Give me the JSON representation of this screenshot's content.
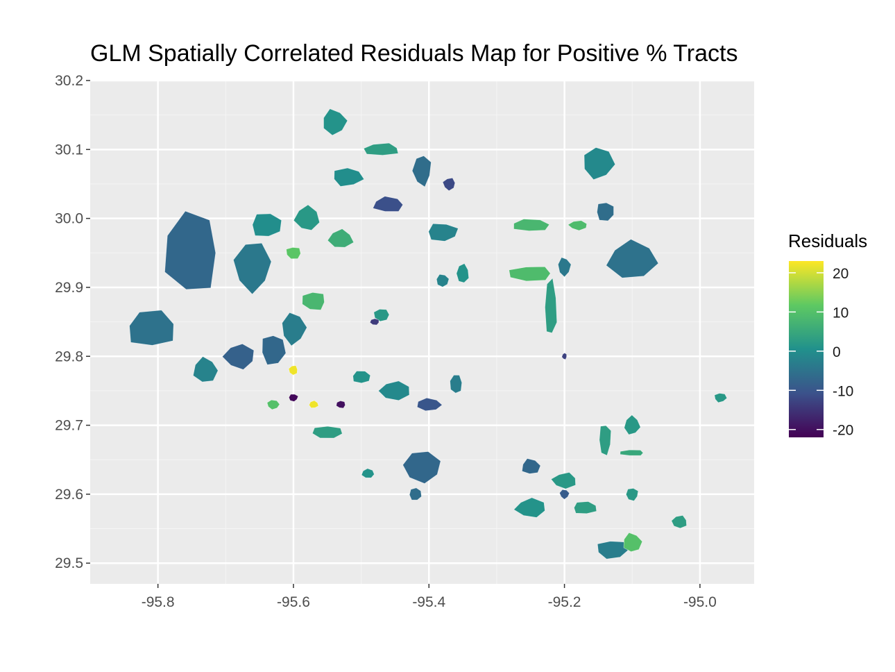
{
  "title": "GLM Spatially Correlated Residuals Map for Positive % Tracts",
  "chart_data": {
    "type": "choropleth",
    "title": "GLM Spatially Correlated Residuals Map for Positive % Tracts",
    "xlabel": "",
    "ylabel": "",
    "xlim": [
      -95.9,
      -94.92
    ],
    "ylim": [
      29.47,
      30.2
    ],
    "x_ticks": [
      "-95.8",
      "-95.6",
      "-95.4",
      "-95.2",
      "-95.0"
    ],
    "x_tick_values": [
      -95.8,
      -95.6,
      -95.4,
      -95.2,
      -95.0
    ],
    "y_ticks": [
      "29.5",
      "29.6",
      "29.7",
      "29.8",
      "29.9",
      "30.0",
      "30.1",
      "30.2"
    ],
    "y_tick_values": [
      29.5,
      29.6,
      29.7,
      29.8,
      29.9,
      30.0,
      30.1,
      30.2
    ],
    "grid": true,
    "legend": {
      "title": "Residuals",
      "position": "right",
      "ticks": [
        "20",
        "10",
        "0",
        "-10",
        "-20"
      ],
      "tick_values": [
        20,
        10,
        0,
        -10,
        -20
      ],
      "range": [
        -22,
        23
      ],
      "palette": [
        "#440154",
        "#3b528b",
        "#21918c",
        "#5ec962",
        "#fde725"
      ]
    },
    "regions": [
      {
        "lon": -95.75,
        "lat": 29.95,
        "w": 0.09,
        "h": 0.13,
        "value": -7
      },
      {
        "lon": -95.66,
        "lat": 29.93,
        "w": 0.06,
        "h": 0.08,
        "value": -4
      },
      {
        "lon": -95.64,
        "lat": 29.99,
        "w": 0.05,
        "h": 0.04,
        "value": 0
      },
      {
        "lon": -95.58,
        "lat": 30.0,
        "w": 0.04,
        "h": 0.04,
        "value": 2
      },
      {
        "lon": -95.6,
        "lat": 29.95,
        "w": 0.025,
        "h": 0.02,
        "value": 11
      },
      {
        "lon": -95.54,
        "lat": 30.14,
        "w": 0.04,
        "h": 0.04,
        "value": 1
      },
      {
        "lon": -95.47,
        "lat": 30.1,
        "w": 0.06,
        "h": 0.02,
        "value": 3
      },
      {
        "lon": -95.41,
        "lat": 30.07,
        "w": 0.03,
        "h": 0.05,
        "value": -6
      },
      {
        "lon": -95.52,
        "lat": 30.06,
        "w": 0.05,
        "h": 0.03,
        "value": 0
      },
      {
        "lon": -95.46,
        "lat": 30.02,
        "w": 0.05,
        "h": 0.025,
        "value": -11
      },
      {
        "lon": -95.37,
        "lat": 30.05,
        "w": 0.02,
        "h": 0.02,
        "value": -12
      },
      {
        "lon": -95.38,
        "lat": 29.98,
        "w": 0.05,
        "h": 0.03,
        "value": -2
      },
      {
        "lon": -95.53,
        "lat": 29.97,
        "w": 0.04,
        "h": 0.03,
        "value": 6
      },
      {
        "lon": -95.57,
        "lat": 29.88,
        "w": 0.04,
        "h": 0.03,
        "value": 8
      },
      {
        "lon": -95.6,
        "lat": 29.84,
        "w": 0.04,
        "h": 0.05,
        "value": -3
      },
      {
        "lon": -95.81,
        "lat": 29.84,
        "w": 0.08,
        "h": 0.06,
        "value": -5
      },
      {
        "lon": -95.68,
        "lat": 29.8,
        "w": 0.05,
        "h": 0.04,
        "value": -8
      },
      {
        "lon": -95.63,
        "lat": 29.81,
        "w": 0.04,
        "h": 0.05,
        "value": -7
      },
      {
        "lon": -95.73,
        "lat": 29.78,
        "w": 0.04,
        "h": 0.04,
        "value": -2
      },
      {
        "lon": -95.6,
        "lat": 29.78,
        "w": 0.015,
        "h": 0.015,
        "value": 22
      },
      {
        "lon": -95.6,
        "lat": 29.74,
        "w": 0.015,
        "h": 0.012,
        "value": -21
      },
      {
        "lon": -95.57,
        "lat": 29.73,
        "w": 0.015,
        "h": 0.012,
        "value": 22
      },
      {
        "lon": -95.53,
        "lat": 29.73,
        "w": 0.015,
        "h": 0.012,
        "value": -20
      },
      {
        "lon": -95.63,
        "lat": 29.73,
        "w": 0.02,
        "h": 0.015,
        "value": 10
      },
      {
        "lon": -95.5,
        "lat": 29.77,
        "w": 0.03,
        "h": 0.02,
        "value": 1
      },
      {
        "lon": -95.45,
        "lat": 29.75,
        "w": 0.05,
        "h": 0.03,
        "value": -1
      },
      {
        "lon": -95.55,
        "lat": 29.69,
        "w": 0.05,
        "h": 0.02,
        "value": 3
      },
      {
        "lon": -95.4,
        "lat": 29.73,
        "w": 0.04,
        "h": 0.02,
        "value": -10
      },
      {
        "lon": -95.36,
        "lat": 29.76,
        "w": 0.02,
        "h": 0.03,
        "value": -3
      },
      {
        "lon": -95.41,
        "lat": 29.64,
        "w": 0.06,
        "h": 0.05,
        "value": -7
      },
      {
        "lon": -95.42,
        "lat": 29.6,
        "w": 0.02,
        "h": 0.02,
        "value": -6
      },
      {
        "lon": -95.49,
        "lat": 29.63,
        "w": 0.02,
        "h": 0.015,
        "value": 1
      },
      {
        "lon": -95.47,
        "lat": 29.86,
        "w": 0.025,
        "h": 0.02,
        "value": 2
      },
      {
        "lon": -95.38,
        "lat": 29.91,
        "w": 0.02,
        "h": 0.02,
        "value": -2
      },
      {
        "lon": -95.35,
        "lat": 29.92,
        "w": 0.02,
        "h": 0.03,
        "value": 1
      },
      {
        "lon": -95.48,
        "lat": 29.85,
        "w": 0.015,
        "h": 0.01,
        "value": -14
      },
      {
        "lon": -95.15,
        "lat": 30.08,
        "w": 0.05,
        "h": 0.05,
        "value": -1
      },
      {
        "lon": -95.25,
        "lat": 29.99,
        "w": 0.06,
        "h": 0.02,
        "value": 8
      },
      {
        "lon": -95.18,
        "lat": 29.99,
        "w": 0.03,
        "h": 0.015,
        "value": 9
      },
      {
        "lon": -95.14,
        "lat": 30.01,
        "w": 0.03,
        "h": 0.03,
        "value": -6
      },
      {
        "lon": -95.1,
        "lat": 29.94,
        "w": 0.08,
        "h": 0.06,
        "value": -5
      },
      {
        "lon": -95.25,
        "lat": 29.92,
        "w": 0.07,
        "h": 0.025,
        "value": 9
      },
      {
        "lon": -95.2,
        "lat": 29.93,
        "w": 0.02,
        "h": 0.03,
        "value": -4
      },
      {
        "lon": -95.22,
        "lat": 29.87,
        "w": 0.02,
        "h": 0.09,
        "value": 3
      },
      {
        "lon": -95.2,
        "lat": 29.8,
        "w": 0.008,
        "h": 0.01,
        "value": -13
      },
      {
        "lon": -94.97,
        "lat": 29.74,
        "w": 0.02,
        "h": 0.015,
        "value": 2
      },
      {
        "lon": -95.25,
        "lat": 29.64,
        "w": 0.03,
        "h": 0.025,
        "value": -7
      },
      {
        "lon": -95.2,
        "lat": 29.62,
        "w": 0.04,
        "h": 0.025,
        "value": 2
      },
      {
        "lon": -95.14,
        "lat": 29.68,
        "w": 0.02,
        "h": 0.05,
        "value": 3
      },
      {
        "lon": -95.1,
        "lat": 29.7,
        "w": 0.025,
        "h": 0.03,
        "value": 2
      },
      {
        "lon": -95.1,
        "lat": 29.66,
        "w": 0.04,
        "h": 0.01,
        "value": 5
      },
      {
        "lon": -95.2,
        "lat": 29.6,
        "w": 0.015,
        "h": 0.015,
        "value": -9
      },
      {
        "lon": -95.17,
        "lat": 29.58,
        "w": 0.04,
        "h": 0.02,
        "value": 3
      },
      {
        "lon": -95.25,
        "lat": 29.58,
        "w": 0.05,
        "h": 0.03,
        "value": 1
      },
      {
        "lon": -95.13,
        "lat": 29.52,
        "w": 0.05,
        "h": 0.03,
        "value": -3
      },
      {
        "lon": -95.1,
        "lat": 29.53,
        "w": 0.03,
        "h": 0.03,
        "value": 10
      },
      {
        "lon": -95.03,
        "lat": 29.56,
        "w": 0.025,
        "h": 0.02,
        "value": 3
      },
      {
        "lon": -95.1,
        "lat": 29.6,
        "w": 0.02,
        "h": 0.02,
        "value": 2
      }
    ]
  }
}
